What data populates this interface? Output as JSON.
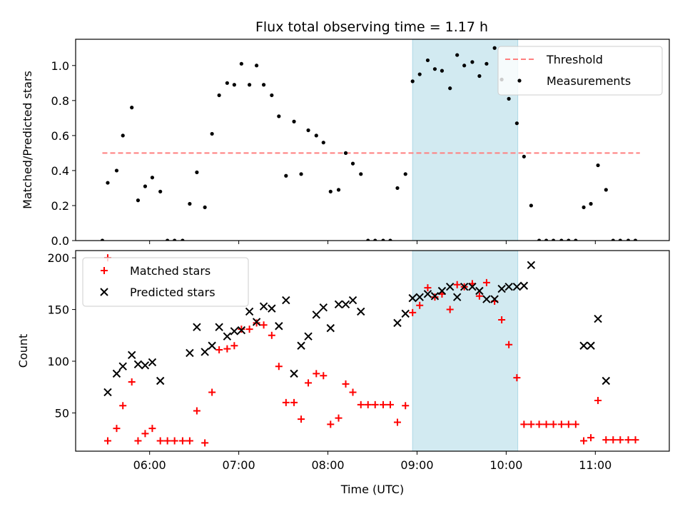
{
  "title": "Flux total observing time = 1.17 h",
  "colors": {
    "threshold": "#ff7f7f",
    "measurement": "#000000",
    "matched": "#ff0000",
    "predicted": "#000000",
    "shade": "#add8e6"
  },
  "chart_data": [
    {
      "type": "scatter",
      "ylabel": "Matched/Predicted stars",
      "xlim": [
        5.17,
        11.83
      ],
      "ylim": [
        0,
        1.15
      ],
      "yticks": [
        0.0,
        0.2,
        0.4,
        0.6,
        0.8,
        1.0
      ],
      "ytick_labels": [
        "0.0",
        "0.2",
        "0.4",
        "0.6",
        "0.8",
        "1.0"
      ],
      "shaded_region": [
        8.95,
        10.13
      ],
      "legend": {
        "position": "top-right",
        "entries": [
          "Threshold",
          "Measurements"
        ]
      },
      "series": [
        {
          "name": "Threshold",
          "kind": "dashed-line",
          "x": [
            5.47,
            11.5
          ],
          "y": [
            0.5,
            0.5
          ]
        },
        {
          "name": "Measurements",
          "kind": "dots",
          "x": [
            5.47,
            5.53,
            5.63,
            5.7,
            5.8,
            5.87,
            5.95,
            6.03,
            6.12,
            6.2,
            6.28,
            6.37,
            6.45,
            6.53,
            6.62,
            6.7,
            6.78,
            6.87,
            6.95,
            7.03,
            7.12,
            7.2,
            7.28,
            7.37,
            7.45,
            7.53,
            7.62,
            7.7,
            7.78,
            7.87,
            7.95,
            8.03,
            8.12,
            8.2,
            8.28,
            8.37,
            8.45,
            8.53,
            8.62,
            8.7,
            8.78,
            8.87,
            8.95,
            9.03,
            9.12,
            9.2,
            9.28,
            9.37,
            9.45,
            9.53,
            9.62,
            9.7,
            9.78,
            9.87,
            9.95,
            10.03,
            10.12,
            10.2,
            10.28,
            10.37,
            10.45,
            10.53,
            10.62,
            10.7,
            10.78,
            10.87,
            10.95,
            11.03,
            11.12,
            11.2,
            11.28,
            11.37,
            11.45
          ],
          "y": [
            0.0,
            0.33,
            0.4,
            0.6,
            0.76,
            0.23,
            0.31,
            0.36,
            0.28,
            0.0,
            0.0,
            0.0,
            0.21,
            0.39,
            0.19,
            0.61,
            0.83,
            0.9,
            0.89,
            1.01,
            0.89,
            1.0,
            0.89,
            0.83,
            0.71,
            0.37,
            0.68,
            0.38,
            0.63,
            0.6,
            0.56,
            0.28,
            0.29,
            0.5,
            0.44,
            0.38,
            0.0,
            0.0,
            0.0,
            0.0,
            0.3,
            0.38,
            0.91,
            0.95,
            1.03,
            0.98,
            0.97,
            0.87,
            1.06,
            1.0,
            1.02,
            0.94,
            1.01,
            1.1,
            0.92,
            0.81,
            0.67,
            0.48,
            0.2,
            0.0,
            0.0,
            0.0,
            0.0,
            0.0,
            0.0,
            0.19,
            0.21,
            0.43,
            0.29,
            0.0,
            0.0,
            0.0,
            0.0
          ]
        }
      ]
    },
    {
      "type": "scatter",
      "ylabel": "Count",
      "xlabel": "Time (UTC)",
      "xlim": [
        5.17,
        11.83
      ],
      "ylim": [
        13,
        207
      ],
      "yticks": [
        50,
        100,
        150,
        200
      ],
      "ytick_labels": [
        "50",
        "100",
        "150",
        "200"
      ],
      "xticks": [
        6,
        7,
        8,
        9,
        10,
        11
      ],
      "xtick_labels": [
        "06:00",
        "07:00",
        "08:00",
        "09:00",
        "10:00",
        "11:00"
      ],
      "shaded_region": [
        8.95,
        10.13
      ],
      "legend": {
        "position": "top-left",
        "entries": [
          "Matched stars",
          "Predicted stars"
        ]
      },
      "series": [
        {
          "name": "Matched stars",
          "kind": "plus",
          "x": [
            5.53,
            5.63,
            5.7,
            5.8,
            5.87,
            5.95,
            6.03,
            6.12,
            6.2,
            6.28,
            6.37,
            6.45,
            6.53,
            6.62,
            6.7,
            6.78,
            6.87,
            6.95,
            7.03,
            7.12,
            7.2,
            7.28,
            7.37,
            7.45,
            7.53,
            7.62,
            7.7,
            7.78,
            7.87,
            7.95,
            8.03,
            8.12,
            8.2,
            8.28,
            8.37,
            8.45,
            8.53,
            8.62,
            8.7,
            8.78,
            8.87,
            8.95,
            9.03,
            9.12,
            9.2,
            9.28,
            9.37,
            9.45,
            9.53,
            9.62,
            9.7,
            9.78,
            9.87,
            9.95,
            10.03,
            10.12,
            10.2,
            10.28,
            10.37,
            10.45,
            10.53,
            10.62,
            10.7,
            10.78,
            10.87,
            10.95,
            11.03,
            11.12,
            11.2,
            11.28,
            11.37,
            11.45
          ],
          "y": [
            23,
            35,
            57,
            80,
            23,
            30,
            35,
            23,
            23,
            23,
            23,
            23,
            52,
            21,
            70,
            111,
            112,
            115,
            131,
            131,
            137,
            135,
            125,
            95,
            60,
            60,
            44,
            79,
            88,
            86,
            39,
            45,
            78,
            70,
            58,
            58,
            58,
            58,
            58,
            41,
            57,
            147,
            154,
            171,
            162,
            165,
            150,
            174,
            172,
            175,
            163,
            176,
            158,
            140,
            116,
            84,
            39,
            39,
            39,
            39,
            39,
            39,
            39,
            39,
            23,
            26,
            62,
            24,
            24,
            24,
            24,
            24
          ],
          "legend_marker_y": 200
        },
        {
          "name": "Predicted stars",
          "kind": "x",
          "x": [
            5.53,
            5.63,
            5.7,
            5.8,
            5.87,
            5.95,
            6.03,
            6.12,
            6.45,
            6.53,
            6.62,
            6.7,
            6.78,
            6.87,
            6.95,
            7.03,
            7.12,
            7.2,
            7.28,
            7.37,
            7.45,
            7.53,
            7.62,
            7.7,
            7.78,
            7.87,
            7.95,
            8.03,
            8.12,
            8.2,
            8.28,
            8.37,
            8.78,
            8.87,
            8.95,
            9.03,
            9.12,
            9.2,
            9.28,
            9.37,
            9.45,
            9.53,
            9.62,
            9.7,
            9.78,
            9.87,
            9.95,
            10.03,
            10.12,
            10.2,
            10.28,
            10.87,
            10.95,
            11.03,
            11.12
          ],
          "y": [
            70,
            88,
            95,
            106,
            97,
            96,
            99,
            81,
            108,
            133,
            109,
            115,
            133,
            124,
            129,
            130,
            148,
            138,
            153,
            151,
            134,
            159,
            88,
            115,
            124,
            145,
            152,
            132,
            155,
            155,
            159,
            148,
            137,
            146,
            161,
            162,
            165,
            163,
            168,
            172,
            162,
            172,
            172,
            168,
            160,
            160,
            170,
            172,
            172,
            173,
            193,
            115,
            115,
            141,
            81
          ]
        }
      ]
    }
  ]
}
